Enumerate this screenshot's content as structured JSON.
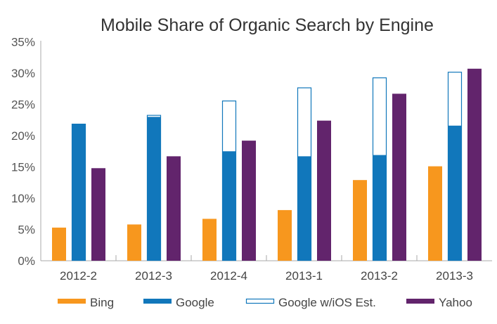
{
  "chart_data": {
    "type": "bar",
    "title": "Mobile Share of Organic Search by Engine",
    "categories": [
      "2012-2",
      "2012-3",
      "2012-4",
      "2013-1",
      "2013-2",
      "2013-3"
    ],
    "ylim": [
      0,
      35
    ],
    "yticks": [
      "0%",
      "5%",
      "10%",
      "15%",
      "20%",
      "25%",
      "30%",
      "35%"
    ],
    "ytick_values": [
      0,
      5,
      10,
      15,
      20,
      25,
      30,
      35
    ],
    "grid": false,
    "legend_position": "bottom",
    "series": [
      {
        "name": "Bing",
        "color": "#f7971e",
        "values": [
          5.3,
          5.8,
          6.7,
          8.1,
          12.9,
          15.1
        ]
      },
      {
        "name": "Google",
        "color": "#1177bb",
        "values": [
          21.9,
          23.0,
          17.5,
          16.7,
          16.9,
          21.6
        ]
      },
      {
        "name": "Google w/iOS Est.",
        "color": "#1177bb",
        "style": "outline",
        "values": [
          21.9,
          23.3,
          25.6,
          27.7,
          29.3,
          30.2
        ]
      },
      {
        "name": "Yahoo",
        "color": "#62246c",
        "values": [
          14.8,
          16.7,
          19.2,
          22.4,
          26.7,
          30.7
        ]
      }
    ]
  }
}
